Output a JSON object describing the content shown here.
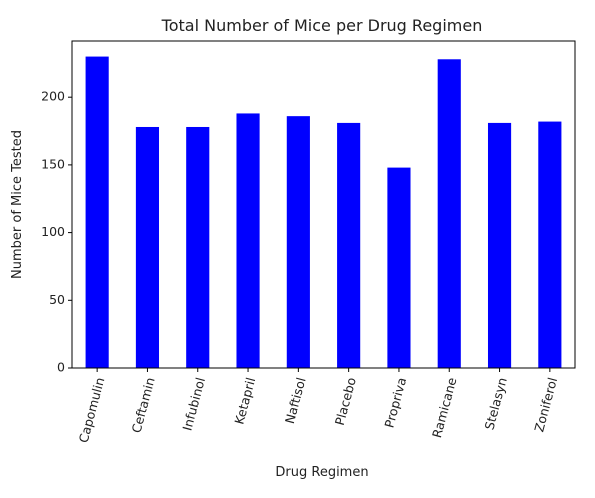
{
  "chart_data": {
    "type": "bar",
    "title": "Total Number of Mice per Drug Regimen",
    "xlabel": "Drug Regimen",
    "ylabel": "Number of Mice Tested",
    "categories": [
      "Capomulin",
      "Ceftamin",
      "Infubinol",
      "Ketapril",
      "Naftisol",
      "Placebo",
      "Propriva",
      "Ramicane",
      "Stelasyn",
      "Zoniferol"
    ],
    "values": [
      230,
      178,
      178,
      188,
      186,
      181,
      148,
      228,
      181,
      182
    ],
    "ylim": [
      0,
      241.5
    ],
    "yticks": [
      0,
      50,
      100,
      150,
      200
    ],
    "bar_color": "#0000ff",
    "grid": false,
    "legend": "none"
  }
}
